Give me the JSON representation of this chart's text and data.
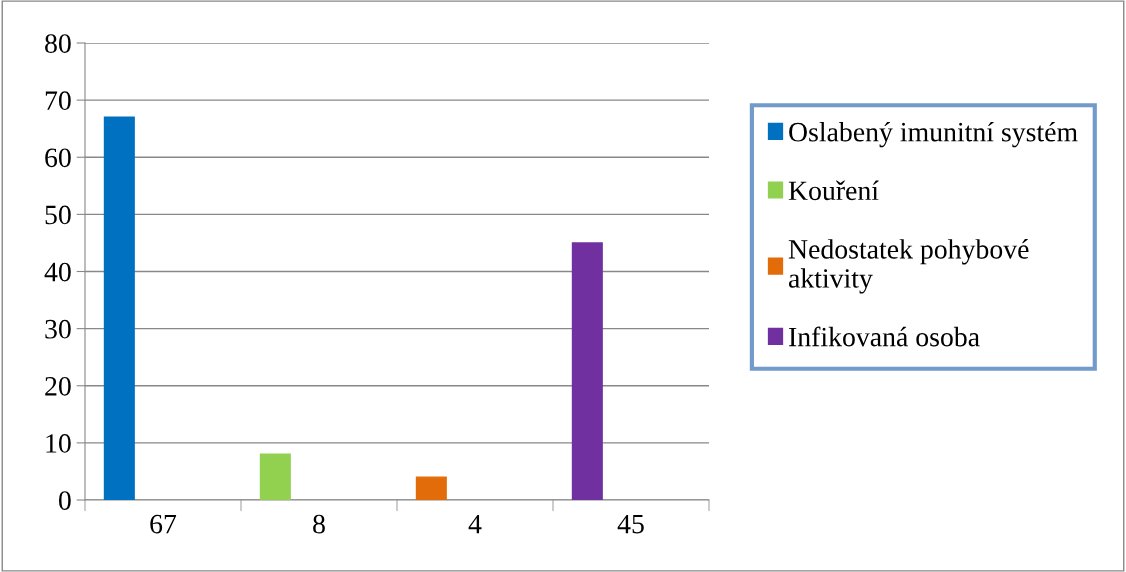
{
  "chart_data": {
    "type": "bar",
    "categories": [
      "67",
      "8",
      "4",
      "45"
    ],
    "series": [
      {
        "name": "Oslabený imunitní systém",
        "color": "#0070c0",
        "values": [
          67,
          null,
          null,
          null
        ]
      },
      {
        "name": "Kouření",
        "color": "#92d050",
        "values": [
          null,
          8,
          null,
          null
        ]
      },
      {
        "name": "Nedostatek pohybové\naktivity",
        "color": "#e36c0a",
        "values": [
          null,
          null,
          4,
          null
        ]
      },
      {
        "name": "Infikovaná osoba",
        "color": "#7030a0",
        "values": [
          null,
          null,
          null,
          45
        ]
      }
    ],
    "ylim": [
      0,
      80
    ],
    "yticks": [
      0,
      10,
      20,
      30,
      40,
      50,
      60,
      70,
      80
    ],
    "grid": "y",
    "legend": "right"
  }
}
